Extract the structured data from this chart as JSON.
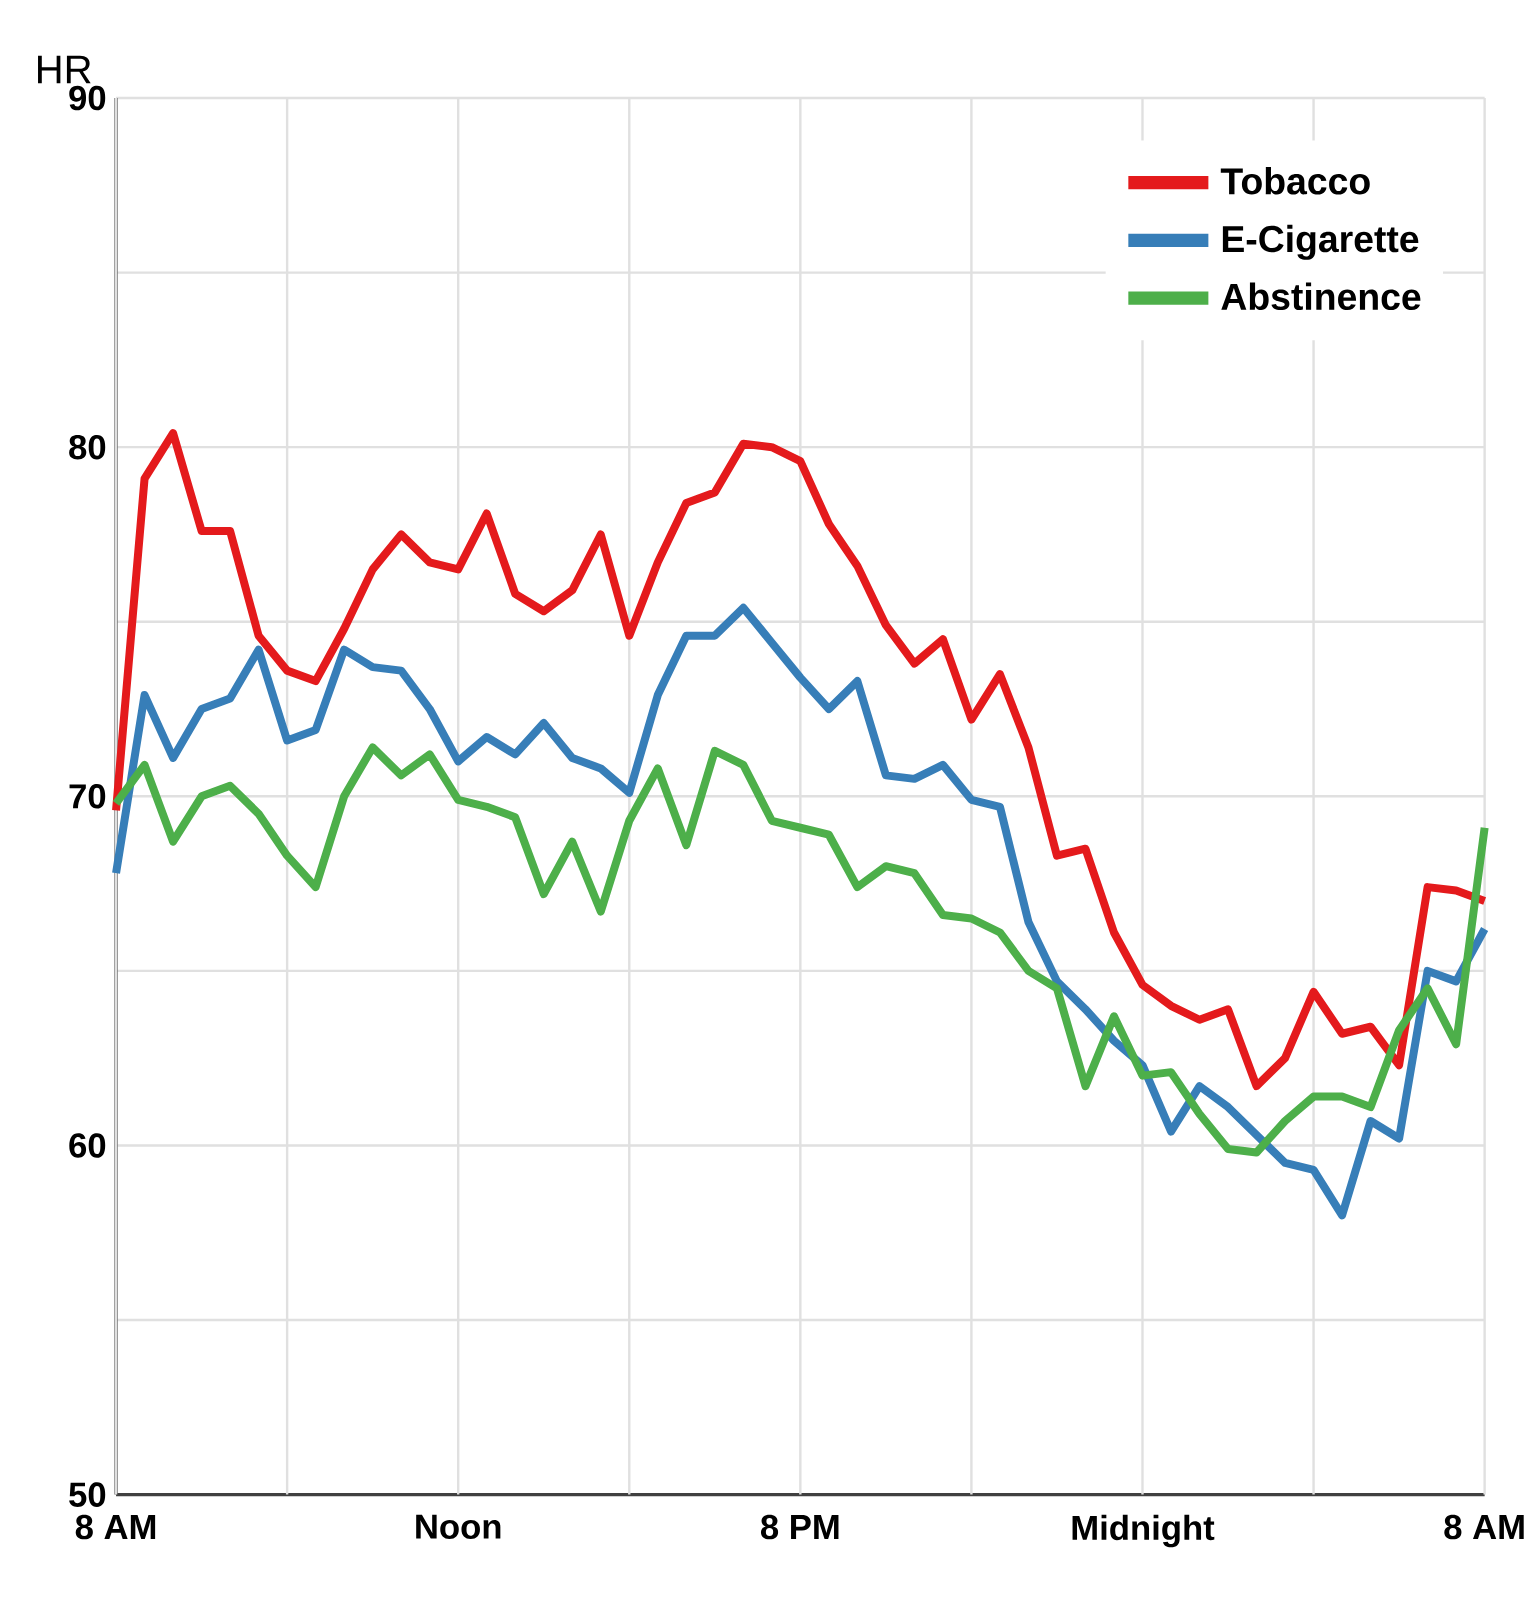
{
  "chart_data": {
    "type": "line",
    "ylabel": "HR",
    "categories": [
      "8 AM",
      null,
      null,
      null,
      null,
      null,
      null,
      null,
      null,
      null,
      null,
      null,
      "Noon",
      null,
      null,
      null,
      null,
      null,
      null,
      null,
      null,
      null,
      null,
      null,
      "8 PM",
      null,
      null,
      null,
      null,
      null,
      null,
      null,
      null,
      null,
      null,
      null,
      "Midnight",
      null,
      null,
      null,
      null,
      null,
      null,
      null,
      null,
      null,
      null,
      null,
      "8 AM"
    ],
    "ylim": [
      50,
      90
    ],
    "yticks": [
      50,
      {
        "value": 55,
        "label": null
      },
      60,
      {
        "value": 65,
        "label": null
      },
      70,
      {
        "value": 75,
        "label": null
      },
      80,
      {
        "value": 85,
        "label": null
      },
      90
    ],
    "grid": true,
    "legend": "top right",
    "line_style": "solid",
    "marker": "none",
    "series": [
      {
        "name": "Tobacco",
        "color": "#e41a1c",
        "values": [
          69.6,
          79.1,
          80.4,
          77.6,
          77.6,
          74.6,
          73.6,
          73.3,
          74.8,
          76.5,
          77.5,
          76.7,
          76.5,
          78.1,
          75.8,
          75.3,
          75.9,
          77.5,
          74.6,
          76.7,
          78.4,
          78.7,
          80.1,
          80.0,
          79.6,
          77.8,
          76.6,
          74.9,
          73.8,
          74.5,
          72.2,
          73.5,
          71.4,
          68.3,
          68.5,
          66.1,
          64.6,
          64.0,
          63.6,
          63.9,
          61.7,
          62.5,
          64.4,
          63.2,
          63.4,
          62.3,
          67.4,
          67.3,
          67.0
        ]
      },
      {
        "name": "E-Cigarette",
        "color": "#377eb8",
        "values": [
          67.8,
          72.9,
          71.1,
          72.5,
          72.8,
          74.2,
          71.6,
          71.9,
          74.2,
          73.7,
          73.6,
          72.5,
          71.0,
          71.7,
          71.2,
          72.1,
          71.1,
          70.8,
          70.1,
          72.9,
          74.6,
          74.6,
          75.4,
          74.4,
          73.4,
          72.5,
          73.3,
          70.6,
          70.5,
          70.9,
          69.9,
          69.7,
          66.4,
          64.7,
          63.9,
          63.0,
          62.3,
          60.4,
          61.7,
          61.1,
          60.3,
          59.5,
          59.3,
          58.0,
          60.7,
          60.2,
          65.0,
          64.7,
          66.2
        ]
      },
      {
        "name": "Abstinence",
        "color": "#4daf4a",
        "values": [
          69.8,
          70.9,
          68.7,
          70.0,
          70.3,
          69.5,
          68.3,
          67.4,
          70.0,
          71.4,
          70.6,
          71.2,
          69.9,
          69.7,
          69.4,
          67.2,
          68.7,
          66.7,
          69.3,
          70.8,
          68.6,
          71.3,
          70.9,
          69.3,
          69.1,
          68.9,
          67.4,
          68.0,
          67.8,
          66.6,
          66.5,
          66.1,
          65.0,
          64.5,
          61.7,
          63.7,
          62.0,
          62.1,
          60.9,
          59.9,
          59.8,
          60.7,
          61.4,
          61.4,
          61.1,
          63.3,
          64.5,
          62.9,
          69.1
        ]
      }
    ]
  }
}
